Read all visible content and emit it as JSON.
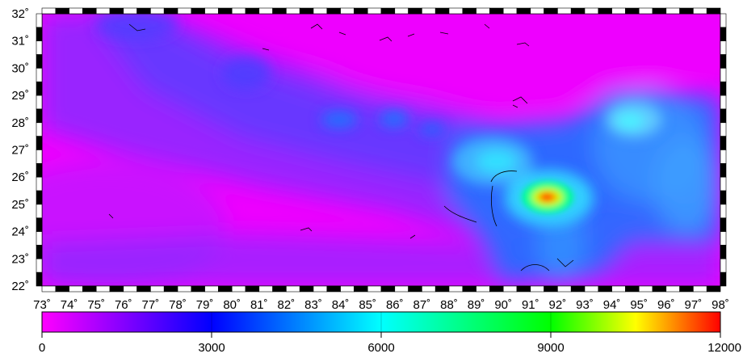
{
  "map": {
    "lon_labels": [
      "73˚",
      "74˚",
      "75˚",
      "76˚",
      "77˚",
      "78˚",
      "79˚",
      "80˚",
      "81˚",
      "82˚",
      "83˚",
      "84˚",
      "85˚",
      "86˚",
      "87˚",
      "88˚",
      "89˚",
      "90˚",
      "91˚",
      "92˚",
      "93˚",
      "94˚",
      "95˚",
      "96˚",
      "97˚",
      "98˚"
    ],
    "lat_labels": [
      "32˚",
      "31˚",
      "30˚",
      "29˚",
      "28˚",
      "27˚",
      "26˚",
      "25˚",
      "24˚",
      "23˚",
      "22˚"
    ],
    "lon_range": [
      73,
      98
    ],
    "lat_range": [
      22,
      32
    ]
  },
  "colorbar": {
    "labels": [
      "0",
      "3000",
      "6000",
      "9000",
      "12000"
    ],
    "range": [
      0,
      12000
    ],
    "colors": [
      "#ff00ff",
      "#0000ff",
      "#00ffff",
      "#00ff00",
      "#ffff00",
      "#ff0000"
    ]
  },
  "colors": {
    "background": "#ee00ff",
    "low": "#cc22ff",
    "medium_low": "#5a3cff",
    "medium": "#2a6cff",
    "high": "#00ffff",
    "peak": "#ff2000"
  }
}
